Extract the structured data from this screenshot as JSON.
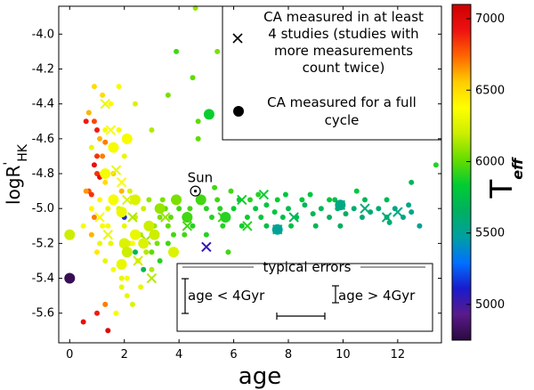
{
  "chart_data": {
    "type": "scatter",
    "title": "",
    "xlabel": "age",
    "ylabel_main": "logR",
    "ylabel_sup": "'",
    "ylabel_sub": "HK",
    "xlim": [
      -0.4,
      13.6
    ],
    "ylim": [
      -5.77,
      -3.84
    ],
    "xticks": [
      0,
      2,
      4,
      6,
      8,
      10,
      12
    ],
    "xtick_labels": [
      "0",
      "2",
      "4",
      "6",
      "8",
      "10",
      "12"
    ],
    "yticks": [
      -5.6,
      -5.4,
      -5.2,
      -5.0,
      -4.8,
      -4.6,
      -4.4,
      -4.2,
      -4.0
    ],
    "ytick_labels": [
      "-5.6",
      "-5.4",
      "-5.2",
      "-5.0",
      "-4.8",
      "-4.6",
      "-4.4",
      "-4.2",
      "-4.0"
    ],
    "colorbar": {
      "label_main": "T",
      "label_sub": "eff",
      "range": [
        4750,
        7100
      ],
      "ticks": [
        5000,
        5500,
        6000,
        6500,
        7000
      ],
      "tick_labels": [
        "5000",
        "5500",
        "6000",
        "6500",
        "7000"
      ],
      "colormap": [
        "#2a0a3f",
        "#5a1a8a",
        "#1a1acc",
        "#0070ff",
        "#00a0a0",
        "#00b060",
        "#00cc33",
        "#66dd00",
        "#ccee00",
        "#ffff00",
        "#ffcc00",
        "#ff6600",
        "#ee1111",
        "#cc0000"
      ]
    },
    "legend": {
      "position": "top-right",
      "cross_label": "CA measured in at least 4 studies (studies with more measurements count twice)",
      "cross_label_lines": [
        "CA measured in at least",
        "4 studies (studies with",
        "more measurements",
        "count twice)"
      ],
      "dot_label": "CA measured for a full cycle",
      "dot_label_lines": [
        "CA measured for a full",
        "cycle"
      ]
    },
    "sun": {
      "label": "Sun",
      "age": 4.6,
      "logRHK": -4.9
    },
    "errors_box": {
      "title": "typical errors",
      "left_label": "age < 4Gyr",
      "right_label": "age > 4Gyr",
      "logRHK_err_young": 0.18,
      "logRHK_err_old": 0.07,
      "age_err": 0.85
    },
    "series": [
      {
        "marker": "dot",
        "points": [
          [
            0.9,
            -4.5,
            6800
          ],
          [
            1.0,
            -4.55,
            6900
          ],
          [
            1.1,
            -4.6,
            6600
          ],
          [
            0.8,
            -4.65,
            6300
          ],
          [
            1.2,
            -4.7,
            6700
          ],
          [
            0.9,
            -4.75,
            6950
          ],
          [
            1.0,
            -4.8,
            6850
          ],
          [
            1.3,
            -4.85,
            6500
          ],
          [
            0.7,
            -4.9,
            6800
          ],
          [
            1.1,
            -4.95,
            6400
          ],
          [
            1.4,
            -5.0,
            6300
          ],
          [
            0.9,
            -5.05,
            6700
          ],
          [
            1.2,
            -5.1,
            6350
          ],
          [
            0.8,
            -5.15,
            6600
          ],
          [
            1.5,
            -5.2,
            6300
          ],
          [
            1.0,
            -5.25,
            6450
          ],
          [
            1.3,
            -5.3,
            6300
          ],
          [
            1.6,
            -5.35,
            6350
          ],
          [
            1.9,
            -5.4,
            6300
          ],
          [
            2.1,
            -5.5,
            6300
          ],
          [
            1.0,
            -5.6,
            6900
          ],
          [
            0.5,
            -5.65,
            6950
          ],
          [
            1.4,
            -5.7,
            7000
          ],
          [
            0.6,
            -4.5,
            6900
          ],
          [
            1.8,
            -4.55,
            6350
          ],
          [
            2.0,
            -4.7,
            6300
          ],
          [
            1.6,
            -4.8,
            6350
          ],
          [
            2.2,
            -4.9,
            6250
          ],
          [
            1.8,
            -5.0,
            6250
          ],
          [
            2.4,
            -5.05,
            6200
          ],
          [
            2.0,
            -5.1,
            6300
          ],
          [
            2.6,
            -5.15,
            6150
          ],
          [
            2.2,
            -5.2,
            6250
          ],
          [
            2.8,
            -5.25,
            6150
          ],
          [
            2.5,
            -5.3,
            6300
          ],
          [
            3.0,
            -5.35,
            6150
          ],
          [
            1.5,
            -4.4,
            6400
          ],
          [
            1.2,
            -4.35,
            6500
          ],
          [
            0.9,
            -4.3,
            6500
          ],
          [
            0.7,
            -4.45,
            6600
          ],
          [
            1.3,
            -4.55,
            6350
          ],
          [
            1.7,
            -4.65,
            6300
          ],
          [
            0.6,
            -4.9,
            6650
          ],
          [
            0.8,
            -5.0,
            6400
          ],
          [
            0.5,
            -5.1,
            6350
          ],
          [
            1.1,
            -5.2,
            6300
          ],
          [
            2.7,
            -5.0,
            6200
          ],
          [
            2.9,
            -4.95,
            6100
          ],
          [
            3.1,
            -5.1,
            6100
          ],
          [
            3.3,
            -5.05,
            6050
          ],
          [
            3.5,
            -5.0,
            6000
          ],
          [
            3.6,
            -5.1,
            6000
          ],
          [
            3.2,
            -5.2,
            6050
          ],
          [
            3.8,
            -4.95,
            6000
          ],
          [
            4.0,
            -5.0,
            5950
          ],
          [
            4.2,
            -5.05,
            5950
          ],
          [
            4.4,
            -5.0,
            5950
          ],
          [
            4.5,
            -5.1,
            5900
          ],
          [
            4.8,
            -4.95,
            5950
          ],
          [
            5.0,
            -5.0,
            5900
          ],
          [
            5.2,
            -5.05,
            5900
          ],
          [
            5.5,
            -5.0,
            5900
          ],
          [
            5.7,
            -5.05,
            5850
          ],
          [
            6.0,
            -5.0,
            5850
          ],
          [
            6.2,
            -4.95,
            5850
          ],
          [
            6.5,
            -5.05,
            5850
          ],
          [
            6.8,
            -5.0,
            5800
          ],
          [
            7.0,
            -5.05,
            5800
          ],
          [
            7.2,
            -4.98,
            5800
          ],
          [
            7.5,
            -5.02,
            5800
          ],
          [
            7.8,
            -5.05,
            5750
          ],
          [
            8.0,
            -5.0,
            5750
          ],
          [
            8.3,
            -5.05,
            5750
          ],
          [
            8.6,
            -4.98,
            5700
          ],
          [
            8.9,
            -5.03,
            5700
          ],
          [
            9.2,
            -5.0,
            5700
          ],
          [
            9.5,
            -5.05,
            5650
          ],
          [
            9.8,
            -5.0,
            5650
          ],
          [
            10.1,
            -5.03,
            5650
          ],
          [
            10.4,
            -5.0,
            5600
          ],
          [
            10.7,
            -5.05,
            5600
          ],
          [
            11.0,
            -5.02,
            5600
          ],
          [
            11.3,
            -5.0,
            5600
          ],
          [
            11.6,
            -5.05,
            5600
          ],
          [
            11.9,
            -5.0,
            5550
          ],
          [
            12.2,
            -5.05,
            5550
          ],
          [
            12.5,
            -5.02,
            5550
          ],
          [
            12.8,
            -5.1,
            5500
          ],
          [
            13.4,
            -4.75,
            5900
          ],
          [
            12.5,
            -4.85,
            5700
          ],
          [
            11.6,
            -4.95,
            5700
          ],
          [
            10.5,
            -4.9,
            5800
          ],
          [
            9.5,
            -4.95,
            5800
          ],
          [
            8.8,
            -4.92,
            5800
          ],
          [
            7.9,
            -4.92,
            5800
          ],
          [
            6.9,
            -4.92,
            5900
          ],
          [
            5.9,
            -4.9,
            5950
          ],
          [
            5.3,
            -4.88,
            5950
          ],
          [
            4.7,
            -4.6,
            6000
          ],
          [
            4.5,
            -4.25,
            6000
          ],
          [
            3.6,
            -4.35,
            6050
          ],
          [
            3.9,
            -4.1,
            5950
          ],
          [
            4.7,
            -4.5,
            6000
          ],
          [
            5.4,
            -4.1,
            6050
          ],
          [
            3.0,
            -4.55,
            6150
          ],
          [
            2.4,
            -4.4,
            6250
          ],
          [
            1.8,
            -4.3,
            6350
          ],
          [
            4.6,
            -3.85,
            6100
          ],
          [
            3.3,
            -5.3,
            5900
          ],
          [
            3.0,
            -5.25,
            6000
          ],
          [
            2.7,
            -5.35,
            5700
          ],
          [
            2.4,
            -5.25,
            5700
          ],
          [
            3.6,
            -5.2,
            5950
          ],
          [
            3.8,
            -5.15,
            5950
          ],
          [
            4.2,
            -5.15,
            5950
          ],
          [
            5.0,
            -5.15,
            5900
          ],
          [
            5.6,
            -5.1,
            5900
          ],
          [
            6.3,
            -5.1,
            5850
          ],
          [
            7.2,
            -5.1,
            5750
          ],
          [
            8.1,
            -5.1,
            5750
          ],
          [
            9.0,
            -5.1,
            5700
          ],
          [
            9.9,
            -5.1,
            5650
          ],
          [
            5.4,
            -4.95,
            5950
          ],
          [
            6.6,
            -4.95,
            5900
          ],
          [
            7.6,
            -4.95,
            5850
          ],
          [
            8.5,
            -4.95,
            5800
          ],
          [
            9.7,
            -4.95,
            5750
          ],
          [
            10.8,
            -4.95,
            5700
          ],
          [
            11.7,
            -5.08,
            5600
          ],
          [
            12.4,
            -4.98,
            5550
          ],
          [
            2.0,
            -5.05,
            5150
          ],
          [
            1.4,
            -5.1,
            6350
          ],
          [
            1.6,
            -4.8,
            6550
          ],
          [
            1.0,
            -4.7,
            6850
          ],
          [
            1.1,
            -4.82,
            6950
          ],
          [
            0.8,
            -4.92,
            6850
          ],
          [
            1.3,
            -4.62,
            6700
          ],
          [
            1.9,
            -4.9,
            6600
          ],
          [
            2.3,
            -5.2,
            6400
          ],
          [
            2.1,
            -5.4,
            6350
          ],
          [
            1.9,
            -5.45,
            6300
          ],
          [
            2.6,
            -5.45,
            6300
          ],
          [
            2.3,
            -5.55,
            6250
          ],
          [
            1.7,
            -5.6,
            6350
          ],
          [
            1.3,
            -5.55,
            6700
          ],
          [
            3.4,
            -4.95,
            6050
          ],
          [
            3.7,
            -5.05,
            6000
          ],
          [
            5.8,
            -5.25,
            5950
          ]
        ]
      },
      {
        "marker": "cross",
        "points": [
          [
            1.3,
            -4.4,
            6300
          ],
          [
            1.5,
            -4.55,
            6350
          ],
          [
            1.7,
            -4.78,
            6300
          ],
          [
            1.9,
            -4.85,
            6350
          ],
          [
            2.3,
            -5.05,
            6150
          ],
          [
            2.8,
            -5.18,
            6100
          ],
          [
            3.5,
            -5.05,
            6100
          ],
          [
            4.3,
            -5.1,
            5950
          ],
          [
            5.0,
            -5.22,
            5050
          ],
          [
            5.6,
            -5.05,
            5950
          ],
          [
            6.3,
            -4.95,
            5850
          ],
          [
            6.5,
            -5.1,
            5900
          ],
          [
            7.1,
            -4.92,
            5850
          ],
          [
            7.6,
            -5.12,
            5700
          ],
          [
            8.2,
            -5.05,
            5700
          ],
          [
            9.9,
            -4.98,
            5650
          ],
          [
            10.8,
            -5.0,
            5600
          ],
          [
            11.6,
            -5.05,
            5600
          ],
          [
            12.0,
            -5.02,
            5550
          ],
          [
            1.4,
            -5.15,
            6300
          ],
          [
            2.1,
            -4.95,
            6250
          ],
          [
            1.1,
            -5.05,
            6350
          ],
          [
            2.5,
            -5.3,
            6200
          ],
          [
            3.0,
            -5.4,
            6150
          ]
        ]
      },
      {
        "marker": "big",
        "points": [
          [
            0.0,
            -5.15,
            6200
          ],
          [
            0.0,
            -5.4,
            4800
          ],
          [
            5.1,
            -4.46,
            5850
          ],
          [
            9.9,
            -4.98,
            5550
          ],
          [
            7.6,
            -5.12,
            5500
          ],
          [
            2.0,
            -5.2,
            6250
          ],
          [
            2.4,
            -5.15,
            6300
          ],
          [
            1.6,
            -4.65,
            6350
          ],
          [
            1.3,
            -4.8,
            6350
          ],
          [
            2.9,
            -5.1,
            6200
          ],
          [
            3.3,
            -5.0,
            6100
          ],
          [
            4.3,
            -5.05,
            5950
          ],
          [
            5.7,
            -5.05,
            5900
          ],
          [
            1.9,
            -5.32,
            6300
          ],
          [
            2.7,
            -5.2,
            6250
          ],
          [
            3.1,
            -5.15,
            6200
          ],
          [
            3.8,
            -5.25,
            6250
          ],
          [
            4.8,
            -4.95,
            5950
          ],
          [
            1.9,
            -5.02,
            6300
          ],
          [
            1.6,
            -4.95,
            6350
          ],
          [
            2.4,
            -4.95,
            6250
          ],
          [
            2.1,
            -5.25,
            6200
          ],
          [
            3.9,
            -4.95,
            6050
          ],
          [
            2.1,
            -4.6,
            6350
          ]
        ]
      }
    ]
  }
}
